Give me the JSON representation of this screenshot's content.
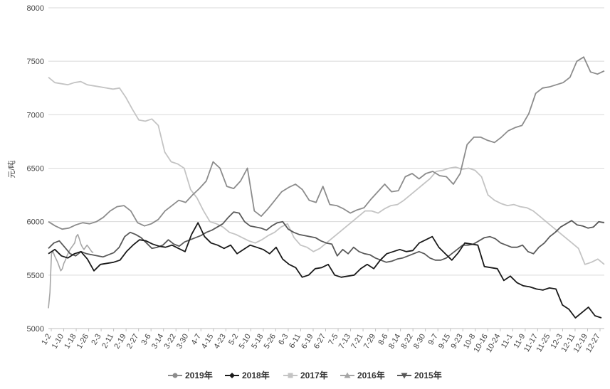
{
  "chart_data": {
    "type": "line",
    "ylabel": "元/吨",
    "xlabel": "",
    "ylim": [
      5000,
      8000
    ],
    "yticks": [
      5000,
      5500,
      6000,
      6500,
      7000,
      7500,
      8000
    ],
    "grid": true,
    "legend_position": "bottom",
    "x_tick_labels": [
      "1-2",
      "1-10",
      "1-18",
      "1-26",
      "2-3",
      "2-11",
      "2-19",
      "2-27",
      "3-6",
      "3-14",
      "3-22",
      "3-30",
      "4-7",
      "4-15",
      "4-23",
      "5-2",
      "5-10",
      "5-18",
      "5-26",
      "6-3",
      "6-11",
      "6-19",
      "6-27",
      "7-5",
      "7-13",
      "7-21",
      "7-29",
      "8-6",
      "8-14",
      "8-22",
      "8-30",
      "9-7",
      "9-15",
      "9-23",
      "10-8",
      "10-16",
      "10-24",
      "11-1",
      "11-9",
      "11-17",
      "11-25",
      "12-3",
      "12-11",
      "12-19",
      "12-27"
    ],
    "series": [
      {
        "name": "2019年",
        "color": "#8c8c8c",
        "marker": "circle",
        "values": [
          6000,
          5960,
          5930,
          5940,
          5970,
          5990,
          5980,
          6000,
          6040,
          6100,
          6140,
          6150,
          6100,
          5990,
          5960,
          5980,
          6020,
          6100,
          6150,
          6200,
          6180,
          6250,
          6310,
          6380,
          6560,
          6500,
          6330,
          6310,
          6380,
          6500,
          6100,
          6050,
          6120,
          6200,
          6280,
          6320,
          6350,
          6300,
          6200,
          6180,
          6330,
          6160,
          6150,
          6120,
          6080,
          6110,
          6130,
          6210,
          6280,
          6350,
          6280,
          6290,
          6420,
          6450,
          6400,
          6450,
          6470,
          6430,
          6420,
          6350,
          6450,
          6720,
          6790,
          6790,
          6760,
          6740,
          6790,
          6850,
          6880,
          6900,
          7010,
          7200,
          7250,
          7260,
          7280,
          7300,
          7350,
          7500,
          7540,
          7400,
          7380,
          7410
        ]
      },
      {
        "name": "2018年",
        "color": "#1a1a1a",
        "marker": "diamond",
        "values": [
          5700,
          5740,
          5680,
          5660,
          5700,
          5720,
          5650,
          5540,
          5600,
          5610,
          5620,
          5640,
          5720,
          5780,
          5830,
          5820,
          5790,
          5770,
          5760,
          5780,
          5750,
          5720,
          5880,
          5990,
          5860,
          5800,
          5780,
          5750,
          5780,
          5700,
          5740,
          5780,
          5760,
          5740,
          5700,
          5760,
          5650,
          5600,
          5570,
          5480,
          5500,
          5560,
          5570,
          5600,
          5500,
          5480,
          5490,
          5500,
          5560,
          5600,
          5560,
          5640,
          5700,
          5720,
          5740,
          5720,
          5730,
          5800,
          5830,
          5860,
          5760,
          5700,
          5640,
          5710,
          5800,
          5790,
          5780,
          5580,
          5570,
          5560,
          5450,
          5490,
          5430,
          5400,
          5390,
          5370,
          5360,
          5380,
          5370,
          5220,
          5180,
          5100,
          5150,
          5200,
          5120,
          5100
        ]
      },
      {
        "name": "2017年",
        "color": "#c4c4c4",
        "marker": "square",
        "values": [
          7350,
          7300,
          7290,
          7280,
          7300,
          7310,
          7280,
          7270,
          7260,
          7250,
          7240,
          7250,
          7160,
          7050,
          6950,
          6940,
          6960,
          6900,
          6650,
          6560,
          6540,
          6500,
          6300,
          6220,
          6100,
          6000,
          5980,
          5950,
          5900,
          5880,
          5850,
          5820,
          5800,
          5830,
          5870,
          5900,
          5950,
          5980,
          5850,
          5780,
          5760,
          5720,
          5750,
          5800,
          5850,
          5900,
          5950,
          6000,
          6050,
          6100,
          6100,
          6080,
          6120,
          6150,
          6160,
          6200,
          6250,
          6300,
          6350,
          6400,
          6470,
          6480,
          6500,
          6510,
          6490,
          6500,
          6480,
          6420,
          6250,
          6200,
          6170,
          6150,
          6160,
          6140,
          6130,
          6100,
          6050,
          6000,
          5950,
          5900,
          5850,
          5800,
          5750,
          5600,
          5620,
          5650,
          5600
        ]
      },
      {
        "name": "2016年",
        "color": "#a6a6a6",
        "marker": "triangle",
        "values": [
          5190,
          5340,
          5700,
          5720,
          5680,
          5650,
          5620,
          5580,
          5540,
          5560,
          5610,
          5640,
          5680,
          5710,
          5740,
          5760,
          5780,
          5800,
          5860,
          5880,
          5840,
          5790,
          5760,
          5740,
          5760,
          5780,
          5760,
          5740,
          5720,
          5710
        ]
      },
      {
        "name": "2015年",
        "color": "#595959",
        "marker": "triangle-down",
        "values": [
          5750,
          5800,
          5820,
          5760,
          5700,
          5680,
          5720,
          5700,
          5690,
          5680,
          5670,
          5690,
          5710,
          5760,
          5860,
          5900,
          5880,
          5850,
          5800,
          5750,
          5760,
          5780,
          5830,
          5790,
          5770,
          5810,
          5830,
          5850,
          5870,
          5900,
          5920,
          5950,
          5980,
          6040,
          6090,
          6080,
          6000,
          5960,
          5950,
          5940,
          5920,
          5960,
          5990,
          6000,
          5930,
          5900,
          5880,
          5870,
          5860,
          5850,
          5820,
          5800,
          5790,
          5680,
          5740,
          5700,
          5760,
          5720,
          5700,
          5690,
          5660,
          5640,
          5620,
          5630,
          5650,
          5660,
          5680,
          5700,
          5720,
          5700,
          5660,
          5640,
          5640,
          5660,
          5700,
          5740,
          5780,
          5780,
          5790,
          5820,
          5850,
          5860,
          5840,
          5800,
          5780,
          5760,
          5760,
          5780,
          5720,
          5700,
          5760,
          5800,
          5860,
          5900,
          5950,
          5980,
          6010,
          5970,
          5960,
          5940,
          5950,
          6000,
          5990
        ]
      }
    ]
  }
}
